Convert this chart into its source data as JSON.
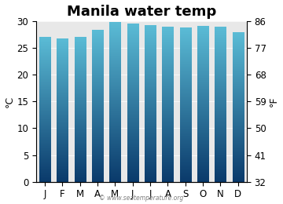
{
  "title": "Manila water temp",
  "months": [
    "J",
    "F",
    "M",
    "A",
    "M",
    "J",
    "J",
    "A",
    "S",
    "O",
    "N",
    "D"
  ],
  "values_c": [
    27.0,
    26.7,
    27.0,
    28.3,
    29.7,
    29.5,
    29.2,
    28.8,
    28.7,
    29.0,
    28.8,
    27.8
  ],
  "ylim_c": [
    0,
    30
  ],
  "yticks_c": [
    0,
    5,
    10,
    15,
    20,
    25,
    30
  ],
  "yticks_f": [
    32,
    41,
    50,
    59,
    68,
    77,
    86
  ],
  "ylabel_left": "°C",
  "ylabel_right": "°F",
  "bar_color_top": "#5bbcd6",
  "bar_color_bottom": "#0a3a6b",
  "plot_bg_color": "#e8e8e8",
  "fig_bg_color": "#ffffff",
  "watermark": "© www.seatemperature.org",
  "title_fontsize": 13,
  "axis_fontsize": 8.5,
  "label_fontsize": 9
}
